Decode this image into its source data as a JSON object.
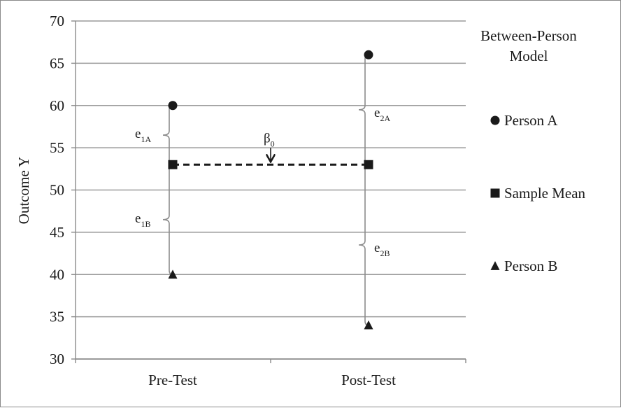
{
  "chart_data": {
    "type": "scatter",
    "categories": [
      "Pre-Test",
      "Post-Test"
    ],
    "ylabel": "Outcome Y",
    "xlabel": "",
    "ylim": [
      30,
      70
    ],
    "yticks": [
      30,
      35,
      40,
      45,
      50,
      55,
      60,
      65,
      70
    ],
    "grid": true,
    "legend_placement": "right",
    "legend_title": "Between-Person Model",
    "series": [
      {
        "name": "Person A",
        "marker": "circle",
        "values": [
          60,
          66
        ]
      },
      {
        "name": "Sample Mean",
        "marker": "square",
        "values": [
          53,
          53
        ]
      },
      {
        "name": "Person B",
        "marker": "triangle",
        "values": [
          40,
          34
        ]
      }
    ],
    "mean_line": {
      "style": "dashed",
      "y": 53,
      "label": "β",
      "label_sub": "0"
    },
    "residuals": [
      {
        "label": "e",
        "sub": "1A",
        "category": "Pre-Test",
        "from": 53,
        "to": 60
      },
      {
        "label": "e",
        "sub": "1B",
        "category": "Pre-Test",
        "from": 53,
        "to": 40
      },
      {
        "label": "e",
        "sub": "2A",
        "category": "Post-Test",
        "from": 53,
        "to": 66
      },
      {
        "label": "e",
        "sub": "2B",
        "category": "Post-Test",
        "from": 53,
        "to": 34
      }
    ],
    "colors": {
      "marker": "#1a1a1a",
      "grid": "#9a9a9a",
      "brace": "#8c8c8c",
      "axis": "#8a8a8a"
    }
  }
}
